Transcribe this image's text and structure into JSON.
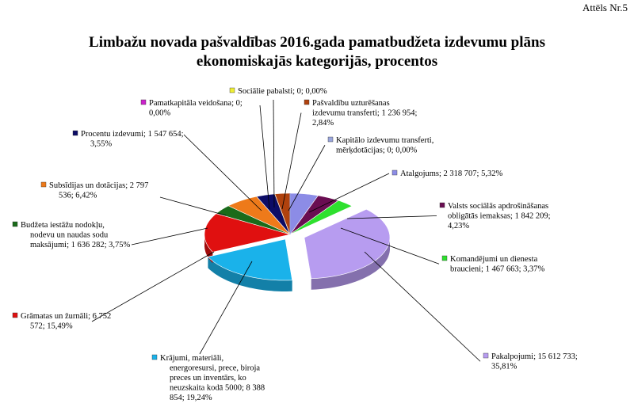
{
  "figure_no": "Attēls Nr.5",
  "title_line1": "Limbažu novada pašvaldības 2016.gada pamatbudžeta izdevumu plāns",
  "title_line2": "ekonomiskajās kategorijās, procentos",
  "chart_data": {
    "type": "pie",
    "title": "Limbažu novada pašvaldības 2016.gada pamatbudžeta izdevumu plāns ekonomiskajās kategorijās, procentos",
    "series": [
      {
        "name": "Atalgojums",
        "value": 2318707,
        "percent": 5.32,
        "color": "#8c8ce6",
        "label_lines": [
          "Atalgojums; 2 318 707; 5,32%"
        ]
      },
      {
        "name": "Valsts sociālās apdrošināšanas obligātās iemaksas",
        "value": 1842209,
        "percent": 4.23,
        "color": "#6a0d52",
        "label_lines": [
          "Valsts sociālās apdrošināšanas",
          "obligātās iemaksas; 1 842 209;",
          "4,23%"
        ]
      },
      {
        "name": "Komandējumi un dienesta braucieni",
        "value": 1467663,
        "percent": 3.37,
        "color": "#2ee02e",
        "label_lines": [
          "Komandējumi  un dienesta",
          "braucieni; 1 467 663; 3,37%"
        ]
      },
      {
        "name": "Pakalpojumi",
        "value": 15612733,
        "percent": 35.81,
        "color": "#b79cf0",
        "label_lines": [
          "Pakalpojumi; 15 612 733;",
          "35,81%"
        ]
      },
      {
        "name": "Krājumi, materiāli, energoresursi, prece, biroja preces un inventārs, ko neuzskaita kodā 5000",
        "value": 8388854,
        "percent": 19.24,
        "color": "#1ab2ea",
        "label_lines": [
          "Krājumi, materiāli,",
          "energoresursi, prece, biroja",
          "preces un inventārs, ko",
          "neuzskaita kodā 5000; 8 388",
          "854; 19,24%"
        ]
      },
      {
        "name": "Grāmatas un žurnāli",
        "value": 6752572,
        "percent": 15.49,
        "color": "#e01010",
        "label_lines": [
          "Grāmatas un žurnāli; 6 752",
          "572; 15,49%"
        ]
      },
      {
        "name": "Budžeta iestāžu nodokļu, nodevu un naudas sodu maksājumi",
        "value": 1636282,
        "percent": 3.75,
        "color": "#1a6b1a",
        "label_lines": [
          "Budžeta iestāžu nodokļu,",
          "nodevu un naudas sodu",
          "maksājumi; 1 636 282; 3,75%"
        ]
      },
      {
        "name": "Subsīdijas un dotācijas",
        "value": 2797536,
        "percent": 6.42,
        "color": "#ee7a1a",
        "label_lines": [
          "Subsīdijas un dotācijas; 2 797",
          "536; 6,42%"
        ]
      },
      {
        "name": "Procentu izdevumi",
        "value": 1547654,
        "percent": 3.55,
        "color": "#0c0c66",
        "label_lines": [
          "Procentu izdevumi; 1 547 654;",
          "3,55%"
        ]
      },
      {
        "name": "Pamatkapitāla veidošana",
        "value": 0,
        "percent": 0.0,
        "color": "#cc22cc",
        "label_lines": [
          "Pamatkapitāla veidošana; 0;",
          "0,00%"
        ]
      },
      {
        "name": "Sociālie pabalsti",
        "value": 0,
        "percent": 0.0,
        "color": "#eeee33",
        "label_lines": [
          "Sociālie pabalsti; 0; 0,00%"
        ]
      },
      {
        "name": "Pašvaldību uzturēšanas izdevumu transferti",
        "value": 1236954,
        "percent": 2.84,
        "color": "#b0420e",
        "label_lines": [
          "Pašvaldību uzturēšanas",
          "izdevumu transferti; 1 236 954;",
          "2,84%"
        ]
      },
      {
        "name": "Kapitālo izdevumu transferti, mērķdotācijas",
        "value": 0,
        "percent": 0.0,
        "color": "#9aa6dc",
        "label_lines": [
          "Kapitālo izdevumu transferti,",
          "mērķdotācijas; 0; 0,00%"
        ]
      }
    ]
  }
}
